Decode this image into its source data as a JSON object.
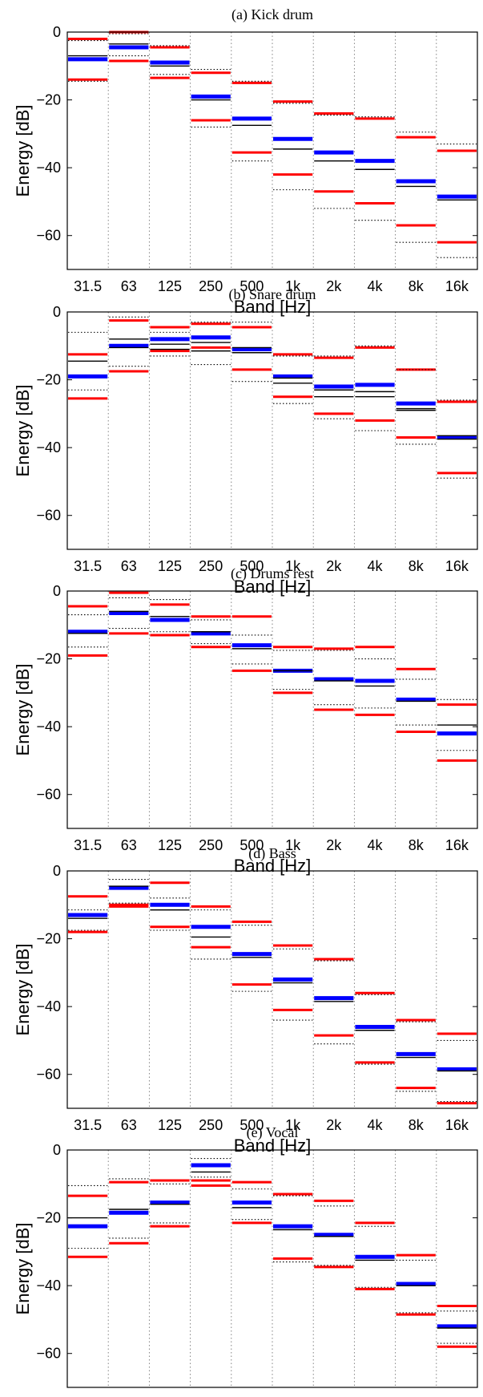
{
  "chart_data": [
    {
      "type": "band-energy",
      "title": "(a) Kick drum",
      "xlabel": "Band [Hz]",
      "ylabel": "Energy [dB]",
      "categories": [
        "31.5",
        "63",
        "125",
        "250",
        "500",
        "1k",
        "2k",
        "4k",
        "8k",
        "16k"
      ],
      "ylim": [
        -70,
        0
      ],
      "yticks": [
        0,
        -20,
        -40,
        -60
      ],
      "ytick_labels": [
        "0",
        "−20",
        "−40",
        "−60"
      ],
      "series": [
        {
          "color": "#0000ff",
          "style": "thick",
          "values": [
            -8,
            -4.5,
            -9,
            -19,
            -25.5,
            -31.5,
            -35.5,
            -38,
            -44,
            -48.5
          ]
        },
        {
          "color": "#000000",
          "style": "thin",
          "values": [
            -7,
            -3.5,
            -10,
            -20,
            -27.5,
            -34.5,
            -38,
            -40.5,
            -45.5,
            -49.5
          ]
        },
        {
          "color": "#ff0000",
          "style": "medium",
          "values": [
            -2,
            0,
            -4.5,
            -12,
            -15,
            -20.5,
            -24,
            -25.5,
            -31,
            -35
          ]
        },
        {
          "color": "#ff0000",
          "style": "medium",
          "values": [
            -14,
            -8.5,
            -13.5,
            -26,
            -35.5,
            -42,
            -47,
            -50.5,
            -57,
            -62
          ]
        },
        {
          "color": "#000000",
          "style": "dotted",
          "values": [
            -2.5,
            -0.5,
            -4,
            -11,
            -14.5,
            -21,
            -24.5,
            -25,
            -29.5,
            -33
          ]
        },
        {
          "color": "#000000",
          "style": "dotted",
          "values": [
            -14.5,
            -7,
            -12.5,
            -28,
            -38,
            -46.5,
            -52,
            -55.5,
            -62,
            -66.5
          ]
        }
      ]
    },
    {
      "type": "band-energy",
      "title": "(b) Snare drum",
      "xlabel": "Band [Hz]",
      "ylabel": "Energy [dB]",
      "categories": [
        "31.5",
        "63",
        "125",
        "250",
        "500",
        "1k",
        "2k",
        "4k",
        "8k",
        "16k"
      ],
      "ylim": [
        -70,
        0
      ],
      "yticks": [
        0,
        -20,
        -40,
        -60
      ],
      "ytick_labels": [
        "0",
        "−20",
        "−40",
        "−60"
      ],
      "series": [
        {
          "color": "#0000ff",
          "style": "thick",
          "values": [
            -19,
            -10,
            -8,
            -7.5,
            -11,
            -19,
            -22,
            -21.5,
            -27,
            -37
          ]
        },
        {
          "color": "#000000",
          "style": "thin",
          "values": [
            -14.5,
            -8,
            -9.5,
            -9,
            -10.5,
            -19.5,
            -23,
            -23.5,
            -28.5,
            -37.5
          ]
        },
        {
          "color": "#ff0000",
          "style": "medium",
          "values": [
            -12.5,
            -2.5,
            -4.5,
            -3.5,
            -4.5,
            -12.5,
            -13.5,
            -10.5,
            -17,
            -26.5
          ]
        },
        {
          "color": "#ff0000",
          "style": "medium",
          "values": [
            -25.5,
            -17.5,
            -11.5,
            -10.5,
            -17,
            -25,
            -30,
            -32,
            -37,
            -47.5
          ]
        },
        {
          "color": "#000000",
          "style": "dotted",
          "values": [
            -6,
            -1.5,
            -6,
            -3,
            -3,
            -13,
            -13,
            -10,
            -17,
            -26
          ]
        },
        {
          "color": "#000000",
          "style": "dotted",
          "values": [
            -23,
            -16,
            -13,
            -15.5,
            -20.5,
            -27,
            -31.5,
            -35,
            -39,
            -49
          ]
        },
        {
          "color": "#000000",
          "style": "thin",
          "values": [
            null,
            -10.5,
            -11,
            -11.5,
            -12,
            -21,
            -25,
            -25,
            -29,
            -36.5
          ]
        }
      ]
    },
    {
      "type": "band-energy",
      "title": "(c) Drums rest",
      "xlabel": "Band [Hz]",
      "ylabel": "Energy [dB]",
      "categories": [
        "31.5",
        "63",
        "125",
        "250",
        "500",
        "1k",
        "2k",
        "4k",
        "8k",
        "16k"
      ],
      "ylim": [
        -70,
        0
      ],
      "yticks": [
        0,
        -20,
        -40,
        -60
      ],
      "ytick_labels": [
        "0",
        "−20",
        "−40",
        "−60"
      ],
      "series": [
        {
          "color": "#0000ff",
          "style": "thick",
          "values": [
            -12,
            -6.5,
            -8.5,
            -12.5,
            -16,
            -23.5,
            -26,
            -26.5,
            -32,
            -42
          ]
        },
        {
          "color": "#000000",
          "style": "thin",
          "values": [
            -12.5,
            -6,
            -7.5,
            -12,
            -17,
            -23.5,
            -26.5,
            -28,
            -32.5,
            -39.5
          ]
        },
        {
          "color": "#ff0000",
          "style": "medium",
          "values": [
            -4.5,
            -0.5,
            -4,
            -7.5,
            -7.5,
            -16.5,
            -17,
            -16.5,
            -23,
            -33.5
          ]
        },
        {
          "color": "#ff0000",
          "style": "medium",
          "values": [
            -19,
            -12.5,
            -13,
            -16.5,
            -23.5,
            -30,
            -35,
            -36.5,
            -41.5,
            -50
          ]
        },
        {
          "color": "#000000",
          "style": "dotted",
          "values": [
            -7,
            -2,
            -2.5,
            -8.5,
            -13,
            -17.5,
            -17.5,
            -20,
            -26,
            -32
          ]
        },
        {
          "color": "#000000",
          "style": "dotted",
          "values": [
            -16.5,
            -11,
            -12,
            -15.5,
            -21.5,
            -29,
            -33.5,
            -34.5,
            -39.5,
            -47
          ]
        }
      ]
    },
    {
      "type": "band-energy",
      "title": "(d) Bass",
      "xlabel": "Band [Hz]",
      "ylabel": "Energy [dB]",
      "categories": [
        "31.5",
        "63",
        "125",
        "250",
        "500",
        "1k",
        "2k",
        "4k",
        "8k",
        "16k"
      ],
      "ylim": [
        -70,
        0
      ],
      "yticks": [
        0,
        -20,
        -40,
        -60
      ],
      "ytick_labels": [
        "0",
        "−20",
        "−40",
        "−60"
      ],
      "series": [
        {
          "color": "#0000ff",
          "style": "thick",
          "values": [
            -13,
            -5,
            -10,
            -16.5,
            -24.5,
            -32,
            -37.5,
            -46,
            -54,
            -58.5
          ]
        },
        {
          "color": "#000000",
          "style": "thin",
          "values": [
            -14,
            -4.5,
            -11.5,
            -19.5,
            -25.5,
            -33,
            -38.5,
            -47,
            -55,
            -59
          ]
        },
        {
          "color": "#ff0000",
          "style": "medium",
          "values": [
            -7.5,
            -10,
            -3.5,
            -10.5,
            -15,
            -22,
            -26,
            -36,
            -44,
            -48
          ]
        },
        {
          "color": "#ff0000",
          "style": "medium",
          "values": [
            -18,
            -10.5,
            -16.5,
            -22.5,
            -33.5,
            -41,
            -48.5,
            -56.5,
            -64,
            -68.5
          ]
        },
        {
          "color": "#000000",
          "style": "dotted",
          "values": [
            -11.5,
            -2.5,
            -8,
            -11.5,
            -16,
            -23,
            -26.5,
            -36.5,
            -44.5,
            -50
          ]
        },
        {
          "color": "#000000",
          "style": "dotted",
          "values": [
            -17.5,
            -9.5,
            -17.5,
            -26,
            -35.5,
            -44,
            -51,
            -57,
            -65,
            -68
          ]
        }
      ]
    },
    {
      "type": "band-energy",
      "title": "(e) Vocal",
      "xlabel": "Band [Hz]",
      "ylabel": "Energy [dB]",
      "categories": [
        "31.5",
        "63",
        "125",
        "250",
        "500",
        "1k",
        "2k",
        "4k",
        "8k",
        "16k"
      ],
      "ylim": [
        -70,
        0
      ],
      "yticks": [
        0,
        -20,
        -40,
        -60
      ],
      "ytick_labels": [
        "0",
        "−20",
        "−40",
        "−60"
      ],
      "series": [
        {
          "color": "#0000ff",
          "style": "thick",
          "values": [
            -22.5,
            -18.5,
            -15.5,
            -4.5,
            -15.5,
            -22.5,
            -25,
            -31.5,
            -39.5,
            -52
          ]
        },
        {
          "color": "#000000",
          "style": "thin",
          "values": [
            -20,
            -17.5,
            -16,
            -6.5,
            -17,
            -23.5,
            -25.5,
            -32.5,
            -40,
            -52.5
          ]
        },
        {
          "color": "#ff0000",
          "style": "medium",
          "values": [
            -13.5,
            -9.5,
            -9,
            -9,
            -9.5,
            -13,
            -15,
            -21.5,
            -31,
            -46
          ]
        },
        {
          "color": "#ff0000",
          "style": "medium",
          "values": [
            -31.5,
            -27.5,
            -22.5,
            -10.5,
            -21.5,
            -32,
            -34.5,
            -41,
            -48.5,
            -58
          ]
        },
        {
          "color": "#000000",
          "style": "dotted",
          "values": [
            -10.5,
            -8.5,
            -10,
            -2.5,
            -11.5,
            -13.5,
            -16.5,
            -22.5,
            -32.5,
            -47.5
          ]
        },
        {
          "color": "#000000",
          "style": "dotted",
          "values": [
            -29,
            -26,
            -21.5,
            -8,
            -20.5,
            -33,
            -34,
            -40.5,
            -48,
            -57
          ]
        }
      ]
    }
  ]
}
